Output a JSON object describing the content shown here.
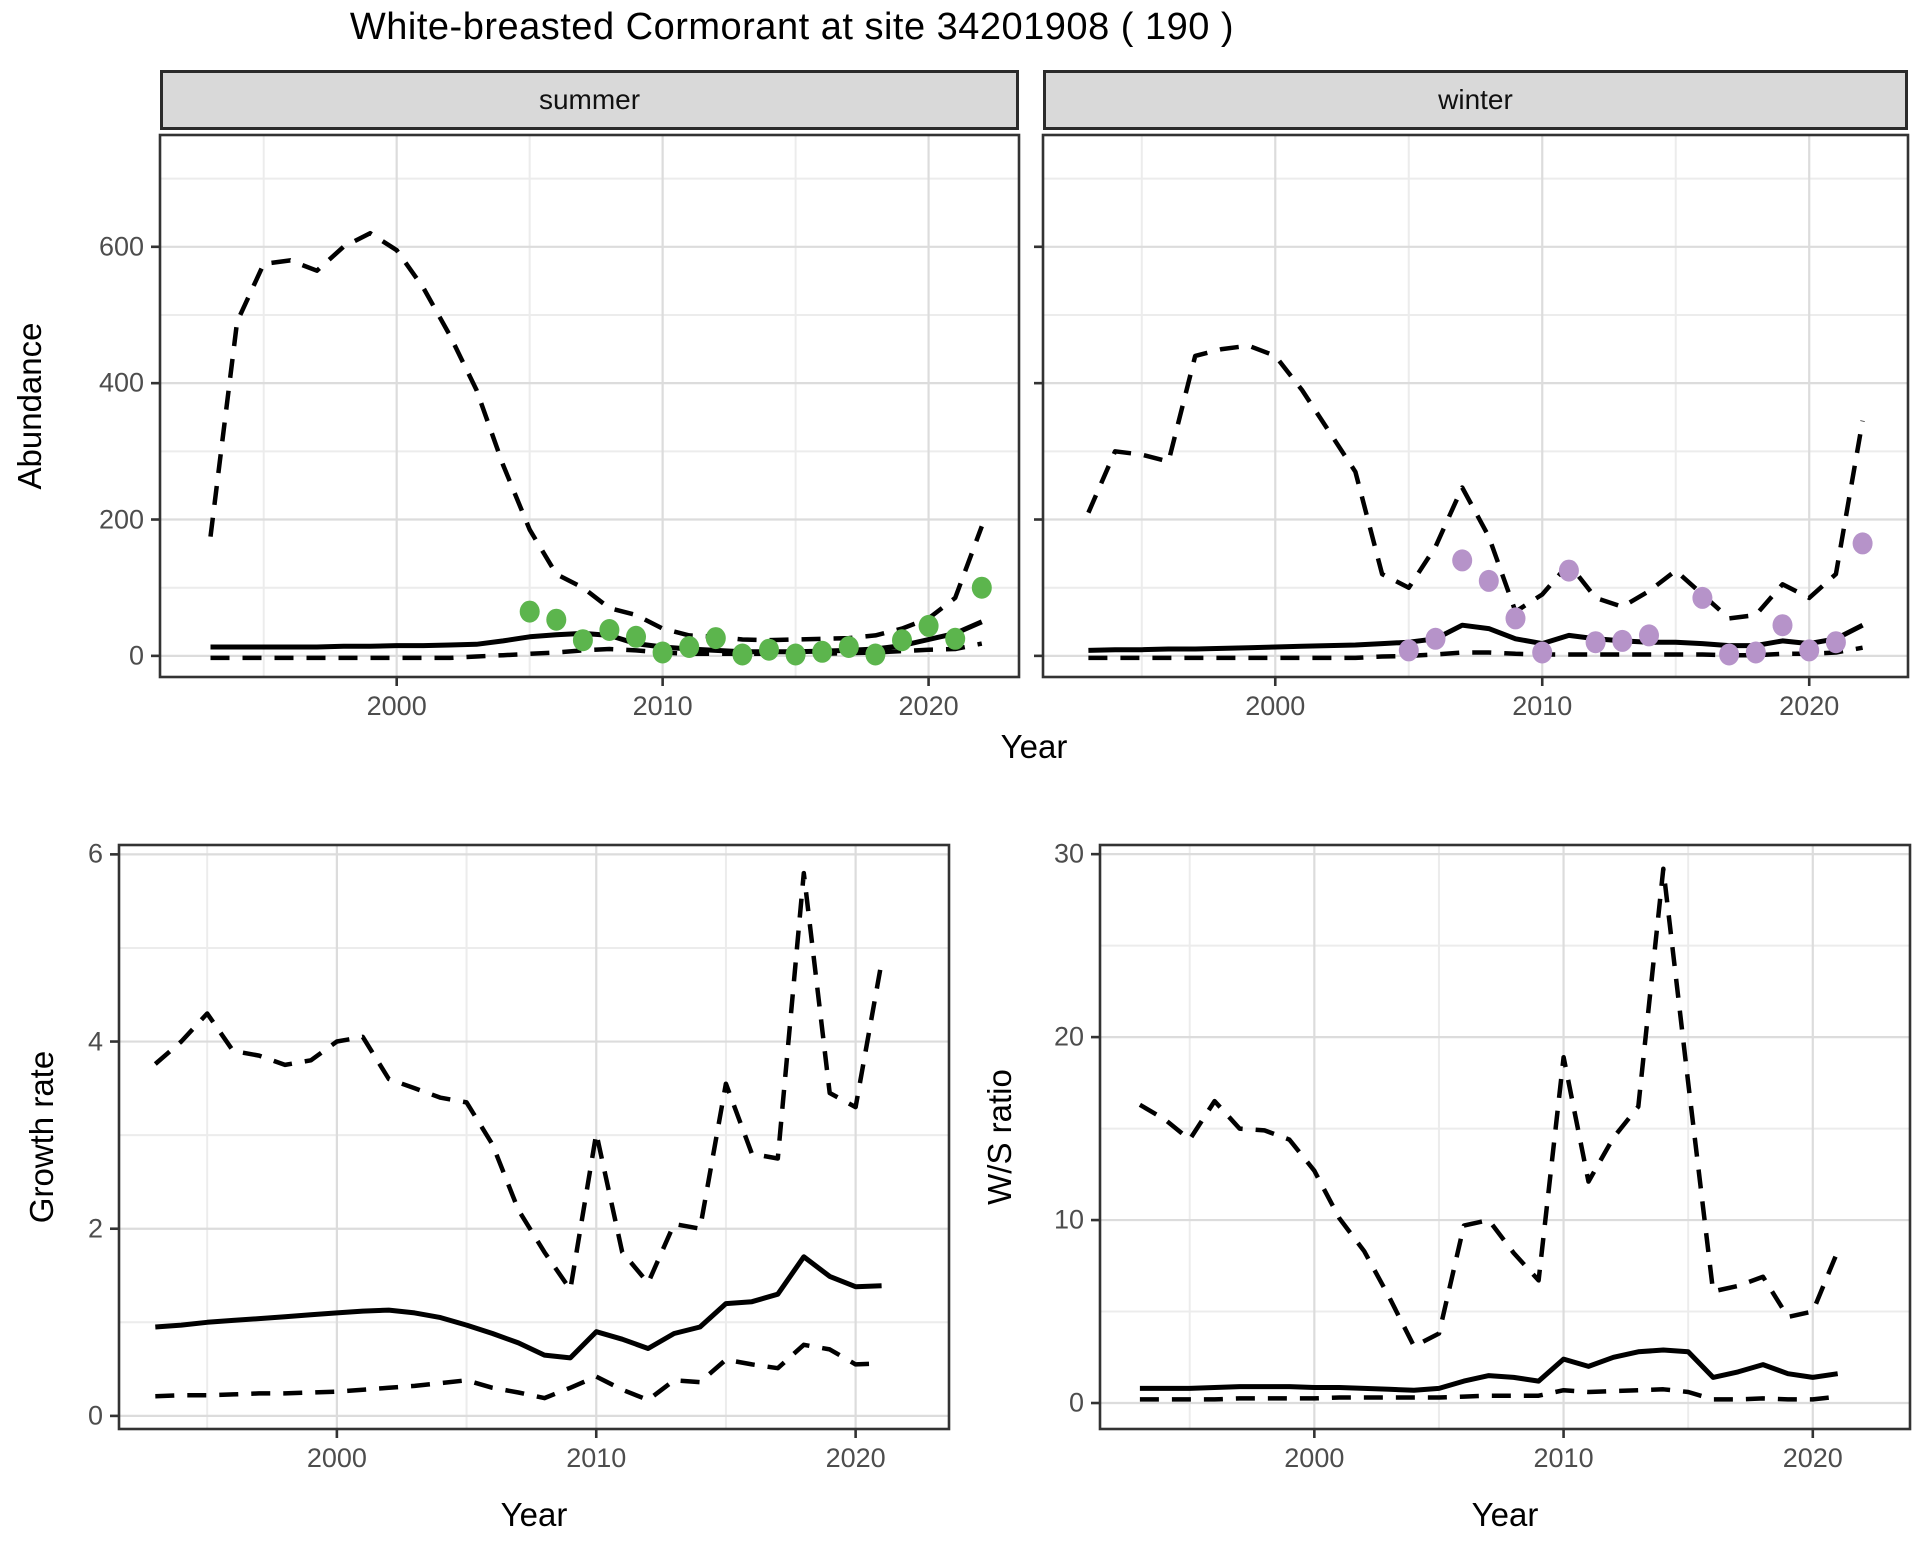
{
  "title": "White-breasted Cormorant at site 34201908 ( 190 )",
  "axis_titles": {
    "abundance": "Abundance",
    "growth": "Growth rate",
    "ws": "W/S ratio",
    "year": "Year"
  },
  "facets": {
    "summer": "summer",
    "winter": "winter"
  },
  "colors": {
    "summer_points": "#5CB54D",
    "winter_points": "#B693C9",
    "line": "#000000",
    "strip_bg": "#d9d9d9"
  },
  "chart_data": [
    {
      "id": "summer",
      "type": "line",
      "facet_label": "summer",
      "ylabel": "Abundance",
      "xlabel": "Year",
      "xlim": [
        1991.1,
        2023.4
      ],
      "ylim": [
        -31,
        764
      ],
      "xticks": [
        2000,
        2010,
        2020
      ],
      "xminor": [
        1995,
        2005,
        2015
      ],
      "yticks": [
        0,
        200,
        400,
        600
      ],
      "yminor": [
        100,
        300,
        500,
        700
      ],
      "show_ytick_labels": true,
      "grid": true,
      "legend": "none",
      "x": [
        1993,
        1994,
        1995,
        1996,
        1997,
        1998,
        1999,
        2000,
        2001,
        2002,
        2003,
        2004,
        2005,
        2006,
        2007,
        2008,
        2009,
        2010,
        2011,
        2012,
        2013,
        2014,
        2015,
        2016,
        2017,
        2018,
        2019,
        2020,
        2021,
        2022
      ],
      "series": [
        {
          "name": "median",
          "style": "solid",
          "values": [
            13,
            13,
            13,
            13,
            13,
            14,
            14,
            15,
            15,
            16,
            17,
            22,
            28,
            31,
            33,
            30,
            18,
            13,
            10,
            8,
            6,
            6,
            6,
            7,
            8,
            10,
            15,
            24,
            33,
            50
          ]
        },
        {
          "name": "upper_ci",
          "style": "dashed",
          "values": [
            175,
            490,
            575,
            580,
            565,
            600,
            620,
            595,
            540,
            470,
            390,
            280,
            185,
            120,
            100,
            70,
            60,
            40,
            30,
            28,
            24,
            23,
            24,
            25,
            26,
            30,
            40,
            55,
            85,
            190
          ]
        },
        {
          "name": "lower_ci",
          "style": "dashed",
          "values": [
            -3,
            -3,
            -3,
            -3,
            -3,
            -3,
            -3,
            -3,
            -3,
            -3,
            -1,
            1,
            3,
            5,
            8,
            10,
            8,
            5,
            3,
            3,
            3,
            3,
            3,
            3,
            4,
            5,
            7,
            9,
            10,
            18
          ]
        }
      ],
      "points": {
        "name": "observed_counts",
        "color_key": "summer_points",
        "years": [
          2005,
          2006,
          2007,
          2008,
          2009,
          2010,
          2011,
          2012,
          2013,
          2014,
          2015,
          2016,
          2017,
          2018,
          2019,
          2020,
          2021,
          2022
        ],
        "values": [
          65,
          53,
          23,
          38,
          28,
          5,
          13,
          26,
          2,
          9,
          2,
          6,
          13,
          2,
          23,
          44,
          25,
          100
        ]
      }
    },
    {
      "id": "winter",
      "type": "line",
      "facet_label": "winter",
      "ylabel": "",
      "xlabel": "Year",
      "xlim": [
        1991.3,
        2023.7
      ],
      "ylim": [
        -31,
        764
      ],
      "xticks": [
        2000,
        2010,
        2020
      ],
      "xminor": [
        1995,
        2005,
        2015
      ],
      "yticks": [
        0,
        200,
        400,
        600
      ],
      "yminor": [
        100,
        300,
        500,
        700
      ],
      "show_ytick_labels": false,
      "grid": true,
      "legend": "none",
      "x": [
        1993,
        1994,
        1995,
        1996,
        1997,
        1998,
        1999,
        2000,
        2001,
        2002,
        2003,
        2004,
        2005,
        2006,
        2007,
        2008,
        2009,
        2010,
        2011,
        2012,
        2013,
        2014,
        2015,
        2016,
        2017,
        2018,
        2019,
        2020,
        2021,
        2022
      ],
      "series": [
        {
          "name": "median",
          "style": "solid",
          "values": [
            8,
            9,
            9,
            10,
            10,
            11,
            12,
            13,
            14,
            15,
            16,
            18,
            20,
            25,
            45,
            40,
            25,
            18,
            30,
            25,
            22,
            20,
            20,
            18,
            15,
            15,
            22,
            18,
            25,
            45
          ]
        },
        {
          "name": "upper_ci",
          "style": "dashed",
          "values": [
            210,
            300,
            295,
            285,
            440,
            450,
            455,
            440,
            390,
            330,
            270,
            120,
            100,
            160,
            247,
            175,
            65,
            90,
            135,
            85,
            72,
            95,
            125,
            90,
            55,
            60,
            105,
            85,
            120,
            345
          ]
        },
        {
          "name": "lower_ci",
          "style": "dashed",
          "values": [
            -3,
            -3,
            -3,
            -3,
            -3,
            -3,
            -3,
            -3,
            -3,
            -3,
            -3,
            -1,
            0,
            2,
            5,
            5,
            3,
            2,
            2,
            2,
            2,
            2,
            2,
            2,
            1,
            1,
            3,
            3,
            5,
            12
          ]
        }
      ],
      "points": {
        "name": "observed_counts",
        "color_key": "winter_points",
        "years": [
          2005,
          2006,
          2007,
          2008,
          2009,
          2010,
          2011,
          2012,
          2013,
          2014,
          2016,
          2017,
          2018,
          2019,
          2020,
          2021,
          2022
        ],
        "values": [
          8,
          25,
          140,
          110,
          55,
          5,
          125,
          20,
          22,
          30,
          85,
          2,
          5,
          45,
          8,
          20,
          165
        ]
      }
    },
    {
      "id": "growth",
      "type": "line",
      "facet_label": "",
      "ylabel": "Growth rate",
      "xlabel": "Year",
      "xlim": [
        1991.6,
        2023.6
      ],
      "ylim": [
        -0.14,
        6.1
      ],
      "xticks": [
        2000,
        2010,
        2020
      ],
      "xminor": [
        1995,
        2005,
        2015
      ],
      "yticks": [
        0,
        2,
        4,
        6
      ],
      "yminor": [
        1,
        3,
        5
      ],
      "show_ytick_labels": true,
      "grid": true,
      "legend": "none",
      "x": [
        1993,
        1994,
        1995,
        1996,
        1997,
        1998,
        1999,
        2000,
        2001,
        2002,
        2003,
        2004,
        2005,
        2006,
        2007,
        2008,
        2009,
        2010,
        2011,
        2012,
        2013,
        2014,
        2015,
        2016,
        2017,
        2018,
        2019,
        2020,
        2021
      ],
      "series": [
        {
          "name": "median",
          "style": "solid",
          "values": [
            0.95,
            0.97,
            1.0,
            1.02,
            1.04,
            1.06,
            1.08,
            1.1,
            1.12,
            1.13,
            1.1,
            1.05,
            0.97,
            0.88,
            0.78,
            0.65,
            0.62,
            0.9,
            0.82,
            0.72,
            0.88,
            0.95,
            1.2,
            1.22,
            1.3,
            1.7,
            1.49,
            1.38,
            1.39
          ]
        },
        {
          "name": "upper_ci",
          "style": "dashed",
          "values": [
            3.76,
            4.0,
            4.3,
            3.9,
            3.85,
            3.75,
            3.8,
            4.0,
            4.05,
            3.6,
            3.5,
            3.4,
            3.35,
            2.9,
            2.2,
            1.75,
            1.35,
            3.02,
            1.75,
            1.42,
            2.05,
            2.0,
            3.55,
            2.8,
            2.75,
            5.8,
            3.45,
            3.3,
            4.85
          ]
        },
        {
          "name": "lower_ci",
          "style": "dashed",
          "values": [
            0.21,
            0.22,
            0.22,
            0.23,
            0.24,
            0.24,
            0.25,
            0.26,
            0.28,
            0.3,
            0.32,
            0.35,
            0.38,
            0.3,
            0.25,
            0.19,
            0.3,
            0.42,
            0.28,
            0.17,
            0.38,
            0.36,
            0.6,
            0.55,
            0.51,
            0.76,
            0.71,
            0.55,
            0.56
          ]
        }
      ],
      "points": null
    },
    {
      "id": "ws",
      "type": "line",
      "facet_label": "",
      "ylabel": "W/S ratio",
      "xlabel": "Year",
      "xlim": [
        1991.4,
        2023.9
      ],
      "ylim": [
        -1.42,
        30.5
      ],
      "xticks": [
        2000,
        2010,
        2020
      ],
      "xminor": [
        1995,
        2005,
        2015
      ],
      "yticks": [
        0,
        10,
        20,
        30
      ],
      "yminor": [
        5,
        15,
        25
      ],
      "show_ytick_labels": true,
      "grid": true,
      "legend": "none",
      "x": [
        1993,
        1994,
        1995,
        1996,
        1997,
        1998,
        1999,
        2000,
        2001,
        2002,
        2003,
        2004,
        2005,
        2006,
        2007,
        2008,
        2009,
        2010,
        2011,
        2012,
        2013,
        2014,
        2015,
        2016,
        2017,
        2018,
        2019,
        2020,
        2021
      ],
      "series": [
        {
          "name": "median",
          "style": "solid",
          "values": [
            0.8,
            0.8,
            0.8,
            0.85,
            0.9,
            0.9,
            0.9,
            0.85,
            0.85,
            0.8,
            0.75,
            0.7,
            0.8,
            1.2,
            1.5,
            1.4,
            1.2,
            2.4,
            2.0,
            2.5,
            2.8,
            2.9,
            2.8,
            1.4,
            1.7,
            2.1,
            1.6,
            1.4,
            1.6
          ]
        },
        {
          "name": "upper_ci",
          "style": "dashed",
          "values": [
            16.3,
            15.5,
            14.4,
            16.5,
            15.0,
            14.9,
            14.4,
            12.7,
            10.1,
            8.3,
            5.8,
            3.1,
            3.8,
            9.7,
            10.0,
            8.2,
            6.7,
            18.9,
            12.1,
            14.5,
            16.2,
            29.2,
            17.5,
            6.1,
            6.4,
            6.9,
            4.7,
            5.0,
            8.3
          ]
        },
        {
          "name": "lower_ci",
          "style": "dashed",
          "values": [
            0.2,
            0.2,
            0.2,
            0.2,
            0.25,
            0.25,
            0.25,
            0.25,
            0.3,
            0.3,
            0.3,
            0.3,
            0.3,
            0.35,
            0.4,
            0.4,
            0.4,
            0.7,
            0.6,
            0.65,
            0.7,
            0.75,
            0.6,
            0.2,
            0.2,
            0.25,
            0.2,
            0.2,
            0.35
          ]
        }
      ],
      "points": null
    }
  ]
}
